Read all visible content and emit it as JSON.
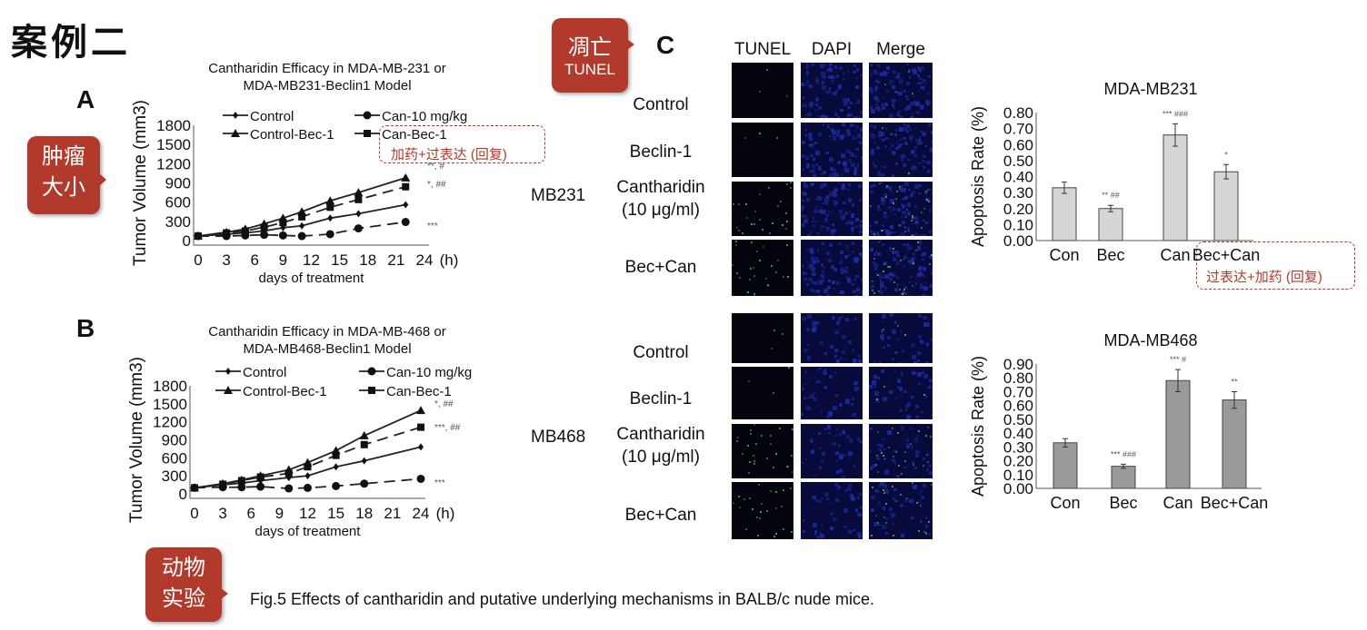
{
  "slide_title": "案例二",
  "callouts": {
    "tumor": "肿瘤大小",
    "apoptosis_top": "凋亡",
    "apoptosis_bottom": "TUNEL",
    "animal": "动物实验"
  },
  "notes": {
    "a": "加药+过表达 (回复)",
    "c": "过表达+加药 (回复)"
  },
  "panels": {
    "a": "A",
    "b": "B",
    "c": "C"
  },
  "tunel": {
    "columns": [
      "TUNEL",
      "DAPI",
      "Merge"
    ],
    "groups": [
      {
        "name": "MB231",
        "rows": [
          "Control",
          "Beclin-1",
          "Cantharidin\n(10 μg/ml)",
          "Bec+Can"
        ]
      },
      {
        "name": "MB468",
        "rows": [
          "Control",
          "Beclin-1",
          "Cantharidin\n(10 μg/ml)",
          "Bec+Can"
        ]
      }
    ]
  },
  "caption": "Fig.5 Effects of cantharidin and putative underlying mechanisms in BALB/c nude mice.",
  "colors": {
    "callout": "#b23a2c",
    "dapi": "#1a2a9a",
    "tunel": "#5fd05f"
  },
  "chart_data": [
    {
      "type": "line",
      "title": "Cantharidin Efficacy in MDA-MB-231 or\nMDA-MB231-Beclin1 Model",
      "xlabel": "days of treatment",
      "ylabel": "Tumor Volume (mm3)",
      "x_unit": "(h)",
      "xlim": [
        0,
        24
      ],
      "ylim": [
        0,
        1800
      ],
      "xticks": [
        0,
        3,
        6,
        9,
        12,
        15,
        18,
        21,
        24
      ],
      "yticks": [
        0,
        300,
        600,
        900,
        1200,
        1500,
        1800
      ],
      "legend": "top",
      "x": [
        0,
        3,
        5,
        7,
        9,
        11,
        14,
        17,
        22
      ],
      "series": [
        {
          "name": "Control",
          "marker": "diamond",
          "dash": false,
          "values": [
            70,
            100,
            120,
            150,
            200,
            230,
            350,
            420,
            560
          ]
        },
        {
          "name": "Control-Bec-1",
          "marker": "triangle",
          "dash": false,
          "values": [
            70,
            130,
            180,
            260,
            350,
            450,
            620,
            750,
            980
          ]
        },
        {
          "name": "Can-10 mg/kg",
          "marker": "circle",
          "dash": true,
          "values": [
            70,
            70,
            80,
            90,
            80,
            70,
            100,
            190,
            290
          ],
          "annotation": "***"
        },
        {
          "name": "Can-Bec-1",
          "marker": "square",
          "dash": true,
          "values": [
            70,
            120,
            150,
            210,
            280,
            370,
            520,
            640,
            840
          ],
          "annotation": "*, ##"
        }
      ],
      "annotations": [
        "**, #",
        "*, ##",
        "***"
      ]
    },
    {
      "type": "line",
      "title": "Cantharidin Efficacy in MDA-MB-468 or\nMDA-MB468-Beclin1 Model",
      "xlabel": "days of treatment",
      "ylabel": "Tumor Volume (mm3)",
      "x_unit": "(h)",
      "xlim": [
        0,
        24
      ],
      "ylim": [
        0,
        1800
      ],
      "xticks": [
        0,
        3,
        6,
        9,
        12,
        15,
        18,
        21,
        24
      ],
      "yticks": [
        0,
        300,
        600,
        900,
        1200,
        1500,
        1800
      ],
      "legend": "top",
      "x": [
        0,
        3,
        5,
        7,
        10,
        12,
        15,
        18,
        24
      ],
      "series": [
        {
          "name": "Control",
          "marker": "diamond",
          "dash": false,
          "values": [
            100,
            150,
            180,
            220,
            270,
            300,
            450,
            550,
            780
          ]
        },
        {
          "name": "Control-Bec-1",
          "marker": "triangle",
          "dash": false,
          "values": [
            100,
            170,
            230,
            300,
            400,
            520,
            720,
            970,
            1390
          ]
        },
        {
          "name": "Can-10 mg/kg",
          "marker": "circle",
          "dash": true,
          "values": [
            100,
            110,
            110,
            120,
            90,
            100,
            130,
            170,
            250
          ]
        },
        {
          "name": "Can-Bec-1",
          "marker": "square",
          "dash": true,
          "values": [
            100,
            160,
            220,
            280,
            340,
            450,
            640,
            820,
            1110
          ]
        }
      ],
      "annotations": [
        "*, ##",
        "***, ##",
        "***"
      ]
    },
    {
      "type": "bar",
      "title": "MDA-MB231",
      "ylabel": "Apoptosis Rate (%)",
      "ylim": [
        0,
        0.8
      ],
      "yticks": [
        "0.00",
        "0.10",
        "0.20",
        "0.30",
        "0.40",
        "0.50",
        "0.60",
        "0.70",
        "0.80"
      ],
      "categories": [
        "Con",
        "Bec",
        "Can",
        "Bec+Can"
      ],
      "values": [
        0.33,
        0.2,
        0.66,
        0.43
      ],
      "errors": [
        0.035,
        0.02,
        0.07,
        0.045
      ],
      "labels": [
        "",
        "** ##",
        "*** ###",
        "*"
      ]
    },
    {
      "type": "bar",
      "title": "MDA-MB468",
      "ylabel": "Apoptosis Rate (%)",
      "ylim": [
        0,
        0.9
      ],
      "yticks": [
        "0.00",
        "0.10",
        "0.20",
        "0.30",
        "0.40",
        "0.50",
        "0.60",
        "0.70",
        "0.80",
        "0.90"
      ],
      "categories": [
        "Con",
        "Bec",
        "Can",
        "Bec+Can"
      ],
      "values": [
        0.33,
        0.16,
        0.78,
        0.64
      ],
      "errors": [
        0.03,
        0.015,
        0.08,
        0.06
      ],
      "labels": [
        "",
        "*** ###",
        "*** #",
        "**"
      ]
    }
  ]
}
